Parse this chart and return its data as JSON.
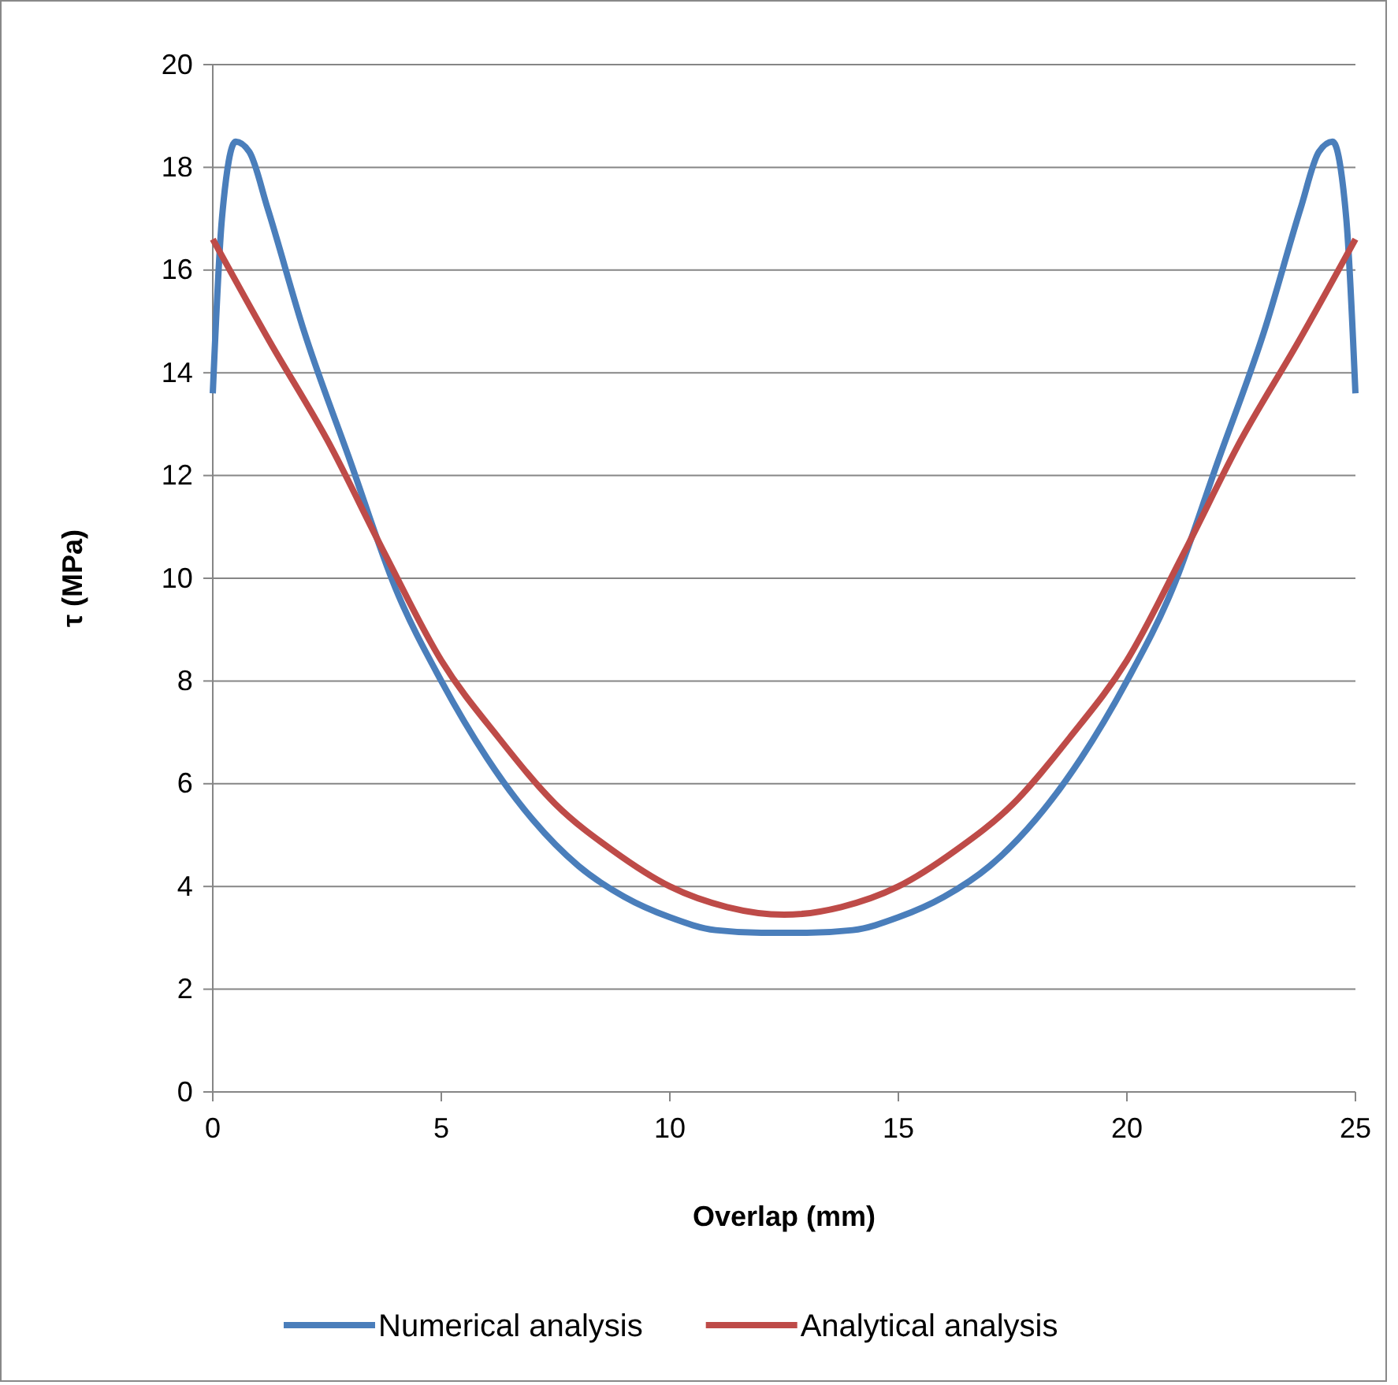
{
  "chart_data": {
    "type": "line",
    "xlabel": "Overlap (mm)",
    "ylabel": "τ (MPa)",
    "xlim": [
      0,
      25
    ],
    "xticks": [
      0,
      5,
      10,
      15,
      20,
      25
    ],
    "ylim": [
      0,
      20
    ],
    "yticks": [
      0,
      2,
      4,
      6,
      8,
      10,
      12,
      14,
      16,
      18,
      20
    ],
    "grid": "y",
    "legend": "bottom",
    "marker": "none",
    "line_style": "solid",
    "series": [
      {
        "name": "Numerical analysis",
        "color": "#4a7ebb",
        "x": [
          0,
          0.2,
          0.5,
          0.8,
          1.2,
          2,
          3,
          4,
          5,
          6,
          7,
          8,
          9,
          10,
          11,
          12,
          13,
          14,
          15,
          16,
          17,
          18,
          19,
          20,
          21,
          22,
          23,
          23.8,
          24.2,
          24.5,
          24.8,
          25
        ],
        "values": [
          13.6,
          17,
          18.5,
          18.3,
          17.2,
          14.8,
          12.3,
          9.8,
          8,
          6.5,
          5.3,
          4.4,
          3.8,
          3.4,
          3.15,
          3.1,
          3.1,
          3.15,
          3.4,
          3.8,
          4.4,
          5.3,
          6.5,
          8,
          9.8,
          12.3,
          14.8,
          17.2,
          18.3,
          18.5,
          17,
          13.6
        ]
      },
      {
        "name": "Analytical analysis",
        "color": "#be4b48",
        "x": [
          0,
          1.25,
          2.5,
          3.75,
          5,
          6.25,
          7.5,
          8.75,
          10,
          11.25,
          12.5,
          13.75,
          15,
          16.25,
          17.5,
          18.75,
          20,
          21.25,
          22.5,
          23.75,
          25
        ],
        "values": [
          16.6,
          14.6,
          12.7,
          10.5,
          8.4,
          6.9,
          5.6,
          4.7,
          4,
          3.6,
          3.45,
          3.6,
          4,
          4.7,
          5.6,
          6.9,
          8.4,
          10.5,
          12.7,
          14.6,
          16.6
        ]
      }
    ]
  }
}
